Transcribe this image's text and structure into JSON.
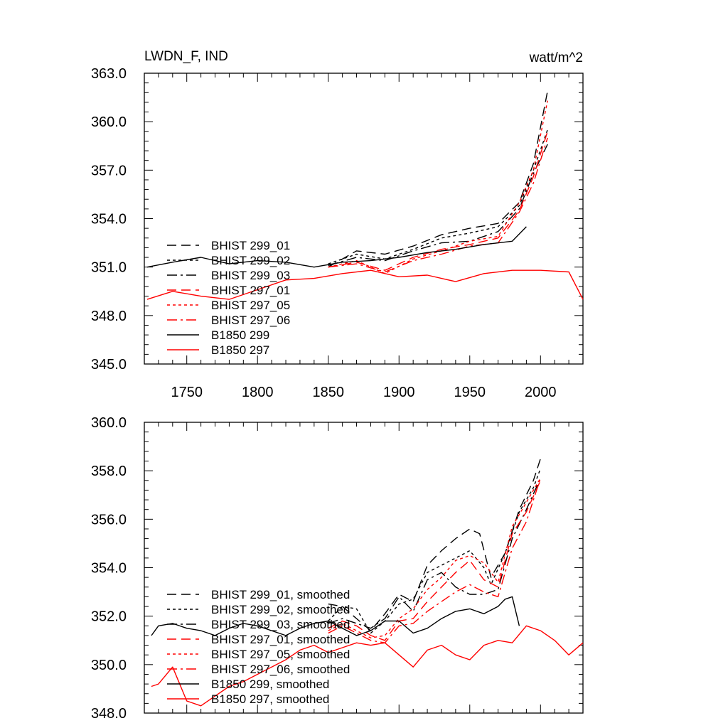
{
  "colors": {
    "black": "#000000",
    "red": "#ff0000"
  },
  "chart_data": [
    {
      "type": "line",
      "title": "LWDN_F, IND",
      "units": "watt/m^2",
      "xlim": [
        1720,
        2030
      ],
      "ylim": [
        345.0,
        363.0
      ],
      "x_ticks": [
        1750,
        1800,
        1850,
        1900,
        1950,
        2000
      ],
      "y_ticks": [
        "345.0",
        "348.0",
        "351.0",
        "354.0",
        "357.0",
        "360.0",
        "363.0"
      ],
      "legend_location": "lower-left",
      "series": [
        {
          "name": "BHIST 299_01",
          "color": "#000000",
          "style": "dash",
          "x": [
            1850,
            1870,
            1890,
            1910,
            1930,
            1950,
            1970,
            1985,
            1995,
            2005
          ],
          "y": [
            351.0,
            352.0,
            351.8,
            352.3,
            353.0,
            353.4,
            353.7,
            355.0,
            357.4,
            361.9
          ]
        },
        {
          "name": "BHIST 299_02",
          "color": "#000000",
          "style": "dot",
          "x": [
            1850,
            1870,
            1890,
            1910,
            1930,
            1950,
            1970,
            1985,
            1995,
            2005
          ],
          "y": [
            351.2,
            351.8,
            351.5,
            352.1,
            352.8,
            353.1,
            353.5,
            354.8,
            357.0,
            359.5
          ]
        },
        {
          "name": "BHIST 299_03",
          "color": "#000000",
          "style": "dashdot",
          "x": [
            1850,
            1870,
            1890,
            1910,
            1930,
            1950,
            1970,
            1985,
            1995,
            2005
          ],
          "y": [
            351.1,
            351.6,
            351.4,
            352.0,
            352.5,
            352.6,
            353.2,
            354.6,
            356.8,
            358.6
          ]
        },
        {
          "name": "BHIST 297_01",
          "color": "#ff0000",
          "style": "dash",
          "x": [
            1850,
            1870,
            1890,
            1910,
            1930,
            1950,
            1970,
            1985,
            1995,
            2005
          ],
          "y": [
            351.0,
            351.3,
            350.8,
            351.6,
            352.1,
            352.4,
            352.8,
            354.5,
            356.6,
            359.4
          ]
        },
        {
          "name": "BHIST 297_05",
          "color": "#ff0000",
          "style": "dot",
          "x": [
            1850,
            1870,
            1890,
            1910,
            1930,
            1950,
            1970,
            1985,
            1995,
            2005
          ],
          "y": [
            351.0,
            351.4,
            350.6,
            351.5,
            352.0,
            352.6,
            352.9,
            355.0,
            357.0,
            361.3
          ]
        },
        {
          "name": "BHIST 297_06",
          "color": "#ff0000",
          "style": "dashdot",
          "x": [
            1850,
            1870,
            1890,
            1910,
            1930,
            1950,
            1970,
            1985,
            1995,
            2005
          ],
          "y": [
            351.0,
            351.2,
            350.7,
            351.4,
            351.8,
            352.3,
            352.5,
            354.4,
            356.2,
            359.0
          ]
        },
        {
          "name": "B1850 299",
          "color": "#000000",
          "style": "solid",
          "x": [
            1722,
            1740,
            1760,
            1780,
            1800,
            1820,
            1840,
            1860,
            1880,
            1900,
            1920,
            1940,
            1960,
            1980,
            1990
          ],
          "y": [
            351.0,
            351.3,
            351.6,
            351.2,
            351.4,
            351.3,
            351.0,
            351.3,
            351.4,
            351.6,
            351.9,
            352.1,
            352.4,
            352.6,
            353.5
          ]
        },
        {
          "name": "B1850 297",
          "color": "#ff0000",
          "style": "solid",
          "x": [
            1722,
            1740,
            1760,
            1780,
            1800,
            1820,
            1840,
            1860,
            1880,
            1900,
            1920,
            1940,
            1960,
            1980,
            2000,
            2020,
            2030
          ],
          "y": [
            349.0,
            349.5,
            349.2,
            349.0,
            349.6,
            350.2,
            350.3,
            350.6,
            350.8,
            350.4,
            350.5,
            350.1,
            350.6,
            350.8,
            350.8,
            350.7,
            349.0
          ]
        }
      ]
    },
    {
      "type": "line",
      "xlim": [
        1720,
        2030
      ],
      "ylim": [
        348.0,
        360.0
      ],
      "y_ticks": [
        "348.0",
        "350.0",
        "352.0",
        "354.0",
        "356.0",
        "358.0",
        "360.0"
      ],
      "legend_location": "lower-left",
      "series": [
        {
          "name": "BHIST 299_01, smoothed",
          "color": "#000000",
          "style": "dash",
          "x": [
            1850,
            1860,
            1870,
            1880,
            1890,
            1900,
            1910,
            1920,
            1930,
            1940,
            1950,
            1957,
            1965,
            1975,
            1985,
            1995,
            2000
          ],
          "y": [
            352.5,
            352.4,
            351.9,
            351.4,
            352.1,
            352.9,
            352.6,
            354.1,
            354.7,
            355.2,
            355.6,
            355.4,
            353.6,
            354.6,
            356.4,
            357.6,
            358.5
          ]
        },
        {
          "name": "BHIST 299_02, smoothed",
          "color": "#000000",
          "style": "dot",
          "x": [
            1850,
            1860,
            1870,
            1880,
            1890,
            1900,
            1910,
            1920,
            1930,
            1940,
            1950,
            1960,
            1965,
            1975,
            1985,
            1995,
            2000
          ],
          "y": [
            351.8,
            352.4,
            352.3,
            351.3,
            351.8,
            352.5,
            352.7,
            353.8,
            354.1,
            354.4,
            354.7,
            354.0,
            353.3,
            354.6,
            356.3,
            357.3,
            358.1
          ]
        },
        {
          "name": "BHIST 299_03, smoothed",
          "color": "#000000",
          "style": "dashdot",
          "x": [
            1850,
            1860,
            1870,
            1880,
            1890,
            1900,
            1910,
            1920,
            1930,
            1940,
            1950,
            1960,
            1970,
            1980,
            1990,
            2000
          ],
          "y": [
            351.7,
            351.9,
            351.7,
            351.5,
            351.9,
            352.8,
            352.2,
            353.5,
            353.8,
            353.2,
            352.9,
            352.9,
            353.1,
            355.2,
            356.4,
            357.7
          ]
        },
        {
          "name": "BHIST 297_01, smoothed",
          "color": "#ff0000",
          "style": "dash",
          "x": [
            1850,
            1860,
            1870,
            1880,
            1890,
            1900,
            1910,
            1920,
            1930,
            1940,
            1950,
            1960,
            1970,
            1980,
            1990,
            2000
          ],
          "y": [
            351.5,
            351.8,
            351.6,
            351.2,
            351.0,
            351.8,
            351.9,
            352.6,
            353.2,
            353.8,
            354.3,
            353.5,
            353.2,
            355.4,
            356.3,
            357.6
          ]
        },
        {
          "name": "BHIST 297_05, smoothed",
          "color": "#ff0000",
          "style": "dot",
          "x": [
            1850,
            1860,
            1870,
            1880,
            1890,
            1900,
            1910,
            1920,
            1930,
            1940,
            1950,
            1960,
            1970,
            1980,
            1990,
            2000
          ],
          "y": [
            351.4,
            351.7,
            351.4,
            351.1,
            351.2,
            351.9,
            352.3,
            353.1,
            353.6,
            354.3,
            354.5,
            354.2,
            353.4,
            355.7,
            356.7,
            357.7
          ]
        },
        {
          "name": "BHIST 297_06, smoothed",
          "color": "#ff0000",
          "style": "dashdot",
          "x": [
            1850,
            1860,
            1870,
            1880,
            1890,
            1900,
            1910,
            1920,
            1930,
            1940,
            1950,
            1960,
            1970,
            1980,
            1990,
            2000
          ],
          "y": [
            351.3,
            351.6,
            351.3,
            351.0,
            350.9,
            351.6,
            351.7,
            352.2,
            352.6,
            353.0,
            353.3,
            353.0,
            352.8,
            354.8,
            355.9,
            357.7
          ]
        },
        {
          "name": "B1850 299, smoothed",
          "color": "#000000",
          "style": "solid",
          "x": [
            1725,
            1730,
            1740,
            1750,
            1760,
            1770,
            1780,
            1790,
            1800,
            1810,
            1820,
            1830,
            1840,
            1850,
            1860,
            1870,
            1880,
            1890,
            1900,
            1910,
            1920,
            1930,
            1940,
            1950,
            1960,
            1970,
            1975,
            1980,
            1985
          ],
          "y": [
            351.2,
            351.6,
            351.7,
            351.5,
            351.4,
            351.2,
            351.5,
            351.7,
            351.6,
            351.4,
            351.2,
            351.5,
            351.7,
            351.8,
            351.5,
            351.2,
            351.4,
            351.8,
            351.8,
            351.3,
            351.5,
            351.9,
            352.2,
            352.3,
            352.1,
            352.4,
            352.7,
            352.8,
            351.6
          ]
        },
        {
          "name": "B1850 297, smoothed",
          "color": "#ff0000",
          "style": "solid",
          "x": [
            1725,
            1730,
            1740,
            1750,
            1760,
            1770,
            1780,
            1790,
            1800,
            1810,
            1820,
            1830,
            1840,
            1850,
            1860,
            1870,
            1880,
            1890,
            1900,
            1910,
            1920,
            1930,
            1940,
            1950,
            1960,
            1970,
            1980,
            1990,
            2000,
            2010,
            2020,
            2030
          ],
          "y": [
            349.1,
            349.2,
            349.9,
            348.5,
            348.3,
            348.7,
            349.1,
            349.3,
            349.6,
            349.9,
            350.2,
            350.6,
            350.8,
            350.5,
            350.7,
            350.9,
            350.8,
            350.9,
            350.4,
            349.9,
            350.6,
            350.8,
            350.4,
            350.2,
            350.8,
            351.0,
            350.9,
            351.6,
            351.4,
            351.0,
            350.4,
            350.9
          ]
        }
      ]
    }
  ]
}
